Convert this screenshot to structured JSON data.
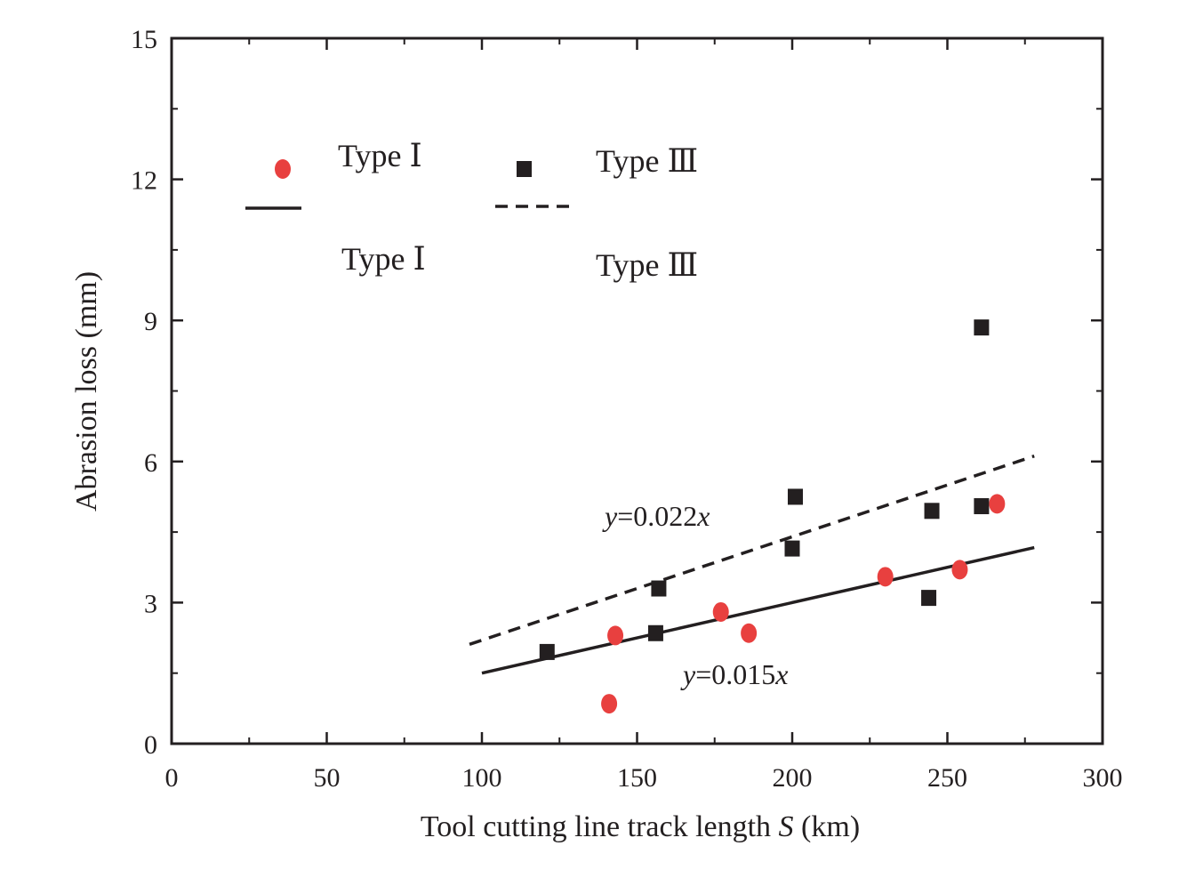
{
  "chart_data": {
    "type": "scatter",
    "title": "",
    "xlabel": "Tool cutting line track length S (km)",
    "xlabel_parts": {
      "before": "Tool cutting line track length ",
      "var": "S",
      "after": " (km)"
    },
    "ylabel": "Abrasion loss (mm)",
    "xlim": [
      0,
      300
    ],
    "ylim": [
      0,
      15
    ],
    "xticks": [
      "0",
      "50",
      "100",
      "150",
      "200",
      "250",
      "300"
    ],
    "yticks": [
      "0",
      "3",
      "6",
      "9",
      "12",
      "15"
    ],
    "xtick_values": [
      0,
      50,
      100,
      150,
      200,
      250,
      300
    ],
    "ytick_values": [
      0,
      3,
      6,
      9,
      12,
      15
    ],
    "minor_x_step": 25,
    "minor_y_step": 1.5,
    "grid": false,
    "legend_position": "top-left",
    "series": [
      {
        "name": "Type Ⅰ",
        "marker": "circle",
        "color": "#e8403f",
        "points": [
          [
            141,
            0.85
          ],
          [
            143,
            2.3
          ],
          [
            177,
            2.8
          ],
          [
            186,
            2.35
          ],
          [
            230,
            3.55
          ],
          [
            254,
            3.7
          ],
          [
            266,
            5.1
          ]
        ]
      },
      {
        "name": "Type Ⅲ",
        "marker": "square",
        "color": "#231f20",
        "points": [
          [
            121,
            1.95
          ],
          [
            156,
            2.35
          ],
          [
            157,
            3.3
          ],
          [
            200,
            4.15
          ],
          [
            201,
            5.25
          ],
          [
            244,
            3.1
          ],
          [
            245,
            4.95
          ],
          [
            261,
            5.05
          ],
          [
            261,
            8.85
          ]
        ]
      }
    ],
    "fits": [
      {
        "name": "Type Ⅰ",
        "style": "solid",
        "slope": 0.015,
        "x_range": [
          100,
          278
        ],
        "equation_var": "y",
        "equation_mid": "=0.015",
        "equation_var2": "x"
      },
      {
        "name": "Type Ⅲ",
        "style": "dashed",
        "slope": 0.022,
        "x_range": [
          96,
          278
        ],
        "equation_var": "y",
        "equation_mid": "=0.022",
        "equation_var2": "x"
      }
    ],
    "legend": {
      "scatter_labels": [
        "Type Ⅰ",
        "Type Ⅲ"
      ],
      "line_labels": [
        "Type Ⅰ",
        "Type Ⅲ"
      ]
    }
  }
}
